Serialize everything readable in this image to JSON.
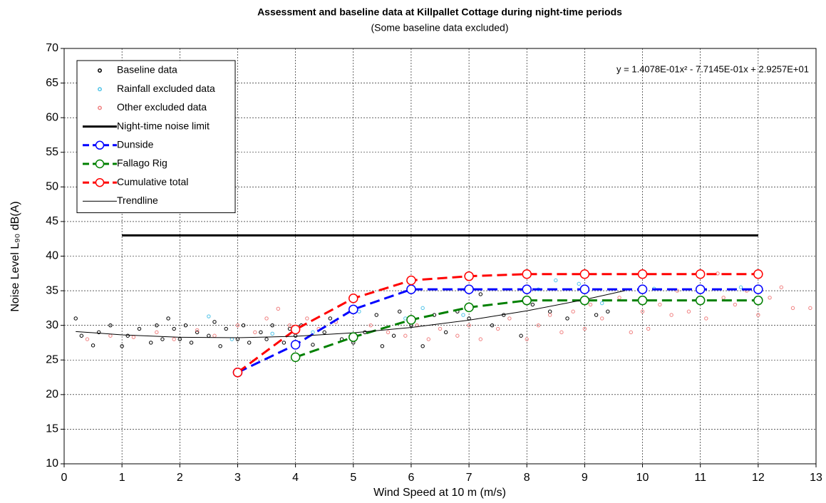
{
  "chart_data": {
    "type": "scatter",
    "title": "Assessment and baseline data at Killpallet Cottage during night-time periods",
    "subtitle": "(Some baseline data excluded)",
    "x_label": "Wind Speed at 10 m (m/s)",
    "y_label": "Noise Level L₉₀ dB(A)",
    "annotation": "y = 1.4078E-01x² - 7.7145E-01x + 2.9257E+01",
    "xlim": [
      0,
      13
    ],
    "ylim": [
      10,
      70
    ],
    "xticks": [
      0,
      1,
      2,
      3,
      4,
      5,
      6,
      7,
      8,
      9,
      10,
      11,
      12,
      13
    ],
    "yticks": [
      10,
      15,
      20,
      25,
      30,
      35,
      40,
      45,
      50,
      55,
      60,
      65,
      70
    ],
    "grid": true,
    "legend": "upper left",
    "series": [
      {
        "name": "Baseline data",
        "color": "#000000",
        "marker": "circle",
        "line": "none",
        "x": [
          0.2,
          0.3,
          0.5,
          0.6,
          0.8,
          1,
          1.1,
          1.3,
          1.5,
          1.6,
          1.7,
          1.8,
          1.9,
          2,
          2.1,
          2.2,
          2.3,
          2.5,
          2.6,
          2.7,
          2.8,
          3,
          3.1,
          3.2,
          3.4,
          3.5,
          3.6,
          3.8,
          3.9,
          4,
          4.1,
          4.3,
          4.5,
          4.6,
          4.8,
          5,
          5.2,
          5.4,
          5.5,
          5.7,
          5.8,
          6,
          6.2,
          6.4,
          6.6,
          6.8,
          7,
          7.2,
          7.4,
          7.6,
          7.9,
          8.1,
          8.4,
          8.7,
          9.2,
          9.4
        ],
        "values": [
          31,
          28.5,
          27.1,
          29,
          30,
          27,
          28.5,
          29.5,
          27.5,
          30,
          28,
          31,
          29.5,
          28,
          30,
          27.5,
          29,
          28.5,
          30.5,
          27,
          29.5,
          28,
          30,
          27.5,
          29,
          28,
          30,
          27.5,
          29.5,
          28.5,
          30,
          27.2,
          29,
          31,
          28,
          27.5,
          29,
          31.5,
          27,
          28.5,
          32,
          30,
          27,
          31.5,
          29,
          32,
          31,
          34.5,
          30,
          31.5,
          28.5,
          33,
          32,
          31,
          31.5,
          32
        ]
      },
      {
        "name": "Rainfall excluded data",
        "color": "#4fc3e8",
        "marker": "circle",
        "line": "none",
        "x": [
          2.5,
          2.9,
          3.6,
          4.3,
          5.1,
          5.9,
          6.2,
          6.9,
          8.2,
          8.5,
          8.9,
          9.3,
          10.2,
          11.7
        ],
        "values": [
          31.3,
          28,
          28.8,
          29,
          32,
          31,
          32.5,
          31.5,
          35.2,
          36.5,
          36,
          33.2,
          35.3,
          35.5
        ]
      },
      {
        "name": "Other excluded data",
        "color": "#f08080",
        "marker": "circle",
        "line": "none",
        "x": [
          0.4,
          0.8,
          1.2,
          1.6,
          1.9,
          2.3,
          2.6,
          3,
          3.3,
          3.5,
          3.7,
          3.9,
          4.2,
          4.4,
          4.7,
          5,
          5.3,
          5.6,
          5.9,
          6.1,
          6.3,
          6.5,
          6.8,
          7,
          7.2,
          7.5,
          7.7,
          8,
          8.2,
          8.4,
          8.6,
          8.8,
          9,
          9.1,
          9.3,
          9.6,
          9.8,
          10,
          10.1,
          10.3,
          10.5,
          10.6,
          10.8,
          11,
          11.1,
          11.3,
          11.4,
          11.6,
          11.8,
          12,
          12.2,
          12.4,
          12.6,
          12.9
        ],
        "values": [
          28,
          28.5,
          28.3,
          29,
          28,
          29.3,
          28.5,
          30,
          29,
          31,
          32.4,
          30,
          31,
          29.5,
          30.5,
          28,
          30,
          29,
          28.5,
          30,
          28,
          29.5,
          28.5,
          30,
          28,
          29.5,
          31,
          28,
          30,
          31.5,
          29,
          32,
          29.5,
          33,
          31,
          34,
          29,
          32,
          29.5,
          33,
          31.5,
          35,
          32,
          33.5,
          31,
          37.5,
          34,
          33,
          35,
          31.5,
          34,
          35.5,
          32.5,
          32.5
        ]
      },
      {
        "name": "Night-time noise limit",
        "color": "#000000",
        "marker": "none",
        "line": "solid",
        "width": 3,
        "x": [
          1,
          12
        ],
        "values": [
          43,
          43
        ]
      },
      {
        "name": "Dunside",
        "color": "#0000ff",
        "marker": "circle",
        "line": "dashed",
        "width": 3,
        "x": [
          3,
          4,
          5,
          6,
          7,
          8,
          9,
          10,
          11,
          12
        ],
        "values": [
          23.2,
          27.2,
          32.3,
          35.2,
          35.2,
          35.2,
          35.2,
          35.2,
          35.2,
          35.2
        ]
      },
      {
        "name": "Fallago Rig",
        "color": "#008000",
        "marker": "circle",
        "line": "dashed",
        "width": 3,
        "x": [
          4,
          5,
          6,
          7,
          8,
          9,
          10,
          11,
          12
        ],
        "values": [
          25.4,
          28.3,
          30.8,
          32.6,
          33.6,
          33.6,
          33.6,
          33.6,
          33.6
        ]
      },
      {
        "name": "Cumulative total",
        "color": "#ff0000",
        "marker": "circle",
        "line": "dashed",
        "width": 3,
        "x": [
          3,
          4,
          5,
          6,
          7,
          8,
          9,
          10,
          11,
          12
        ],
        "values": [
          23.2,
          29.4,
          33.9,
          36.5,
          37.1,
          37.4,
          37.4,
          37.4,
          37.4,
          37.4
        ]
      },
      {
        "name": "Trendline",
        "color": "#000000",
        "marker": "none",
        "line": "solid",
        "width": 1,
        "x": [
          0.2,
          1,
          2,
          3,
          4,
          5,
          6,
          7,
          8,
          9,
          9.7
        ],
        "values": [
          29.11,
          28.63,
          28.28,
          28.21,
          28.42,
          28.92,
          29.7,
          30.75,
          32.1,
          33.72,
          35.02
        ]
      }
    ]
  }
}
